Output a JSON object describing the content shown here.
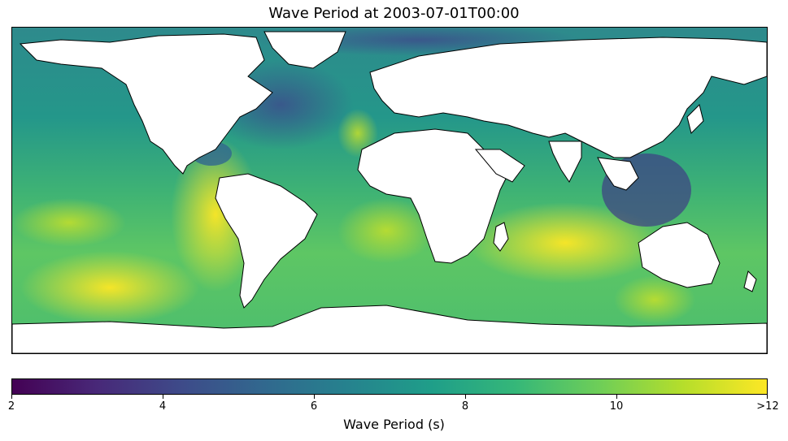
{
  "title": "Wave Period at 2003-07-01T00:00",
  "map": {
    "variable": "Wave Period",
    "projection": "plate-carree",
    "colormap": "viridis",
    "land_color": "#ffffff",
    "coastline_color": "#000000",
    "value_range": [
      2,
      12
    ]
  },
  "colorbar": {
    "label": "Wave Period (s)",
    "ticks": [
      {
        "value": 2,
        "label": "2"
      },
      {
        "value": 4,
        "label": "4"
      },
      {
        "value": 6,
        "label": "6"
      },
      {
        "value": 8,
        "label": "8"
      },
      {
        "value": 10,
        "label": "10"
      },
      {
        "value": 12,
        "label": ">12"
      }
    ],
    "colors": [
      "#440154",
      "#482878",
      "#3e4a89",
      "#31688e",
      "#26828e",
      "#1f9e89",
      "#35b779",
      "#6ece58",
      "#b5de2b",
      "#fde725"
    ]
  }
}
